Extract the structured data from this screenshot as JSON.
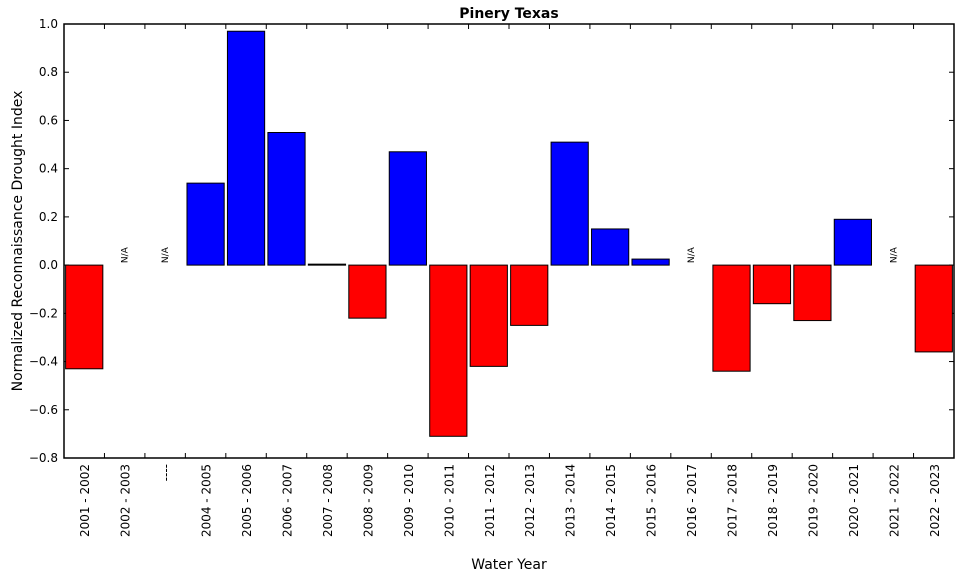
{
  "chart_data": {
    "type": "bar",
    "title": "Pinery Texas",
    "xlabel": "Water Year",
    "ylabel": "Normalized Reconnaissance Drought Index",
    "ylim": [
      -0.8,
      1.0
    ],
    "yticks": [
      "1.0",
      "0.8",
      "0.6",
      "0.4",
      "0.2",
      "0.0",
      "−0.2",
      "−0.4",
      "−0.6",
      "−0.8"
    ],
    "ytick_values": [
      1.0,
      0.8,
      0.6,
      0.4,
      0.2,
      0.0,
      -0.2,
      -0.4,
      -0.6,
      -0.8
    ],
    "grid": false,
    "categories": [
      "2001 - 2002",
      "2002 - 2003",
      "----",
      "2004 - 2005",
      "2005 - 2006",
      "2006 - 2007",
      "2007 - 2008",
      "2008 - 2009",
      "2009 - 2010",
      "2010 - 2011",
      "2011 - 2012",
      "2012 - 2013",
      "2013 - 2014",
      "2014 - 2015",
      "2015 - 2016",
      "2016 - 2017",
      "2017 - 2018",
      "2018 - 2019",
      "2019 - 2020",
      "2020 - 2021",
      "2021 - 2022",
      "2022 - 2023"
    ],
    "values": [
      -0.43,
      null,
      null,
      0.34,
      0.97,
      0.55,
      0.004,
      -0.22,
      0.47,
      -0.71,
      -0.42,
      -0.25,
      0.51,
      0.15,
      0.025,
      null,
      -0.44,
      -0.16,
      -0.23,
      0.19,
      null,
      -0.36
    ],
    "missing_label": "N/A",
    "colors": {
      "positive": "#0000ff",
      "negative": "#ff0000"
    }
  }
}
